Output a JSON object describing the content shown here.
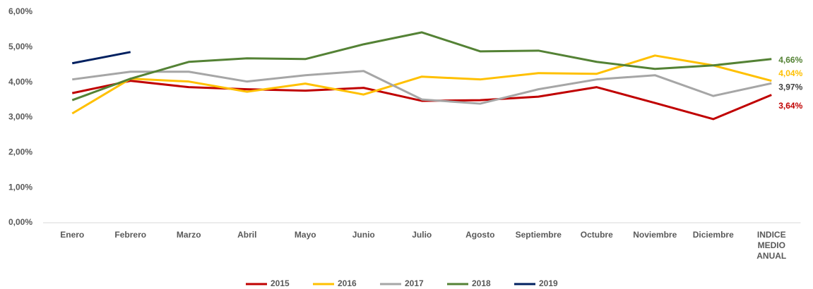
{
  "chart_data": {
    "type": "line",
    "categories": [
      "Enero",
      "Febrero",
      "Marzo",
      "Abril",
      "Mayo",
      "Junio",
      "Julio",
      "Agosto",
      "Septiembre",
      "Octubre",
      "Noviembre",
      "Diciembre",
      "INDICE MEDIO ANUAL"
    ],
    "series": [
      {
        "name": "2015",
        "color": "#c00000",
        "values": [
          3.69,
          4.04,
          3.86,
          3.8,
          3.76,
          3.84,
          3.47,
          3.49,
          3.59,
          3.86,
          3.41,
          2.95,
          3.64
        ],
        "value_labels": [
          null,
          null,
          null,
          null,
          null,
          null,
          null,
          null,
          null,
          null,
          null,
          null,
          "3,64%"
        ]
      },
      {
        "name": "2016",
        "color": "#ffc000",
        "values": [
          3.11,
          4.1,
          4.02,
          3.73,
          3.96,
          3.65,
          4.16,
          4.08,
          4.26,
          4.24,
          4.76,
          4.48,
          4.04
        ],
        "value_labels": [
          null,
          null,
          null,
          null,
          null,
          null,
          null,
          null,
          null,
          null,
          null,
          null,
          "4,04%"
        ]
      },
      {
        "name": "2017",
        "color": "#a6a6a6",
        "values": [
          4.08,
          4.3,
          4.3,
          4.02,
          4.2,
          4.32,
          3.51,
          3.39,
          3.8,
          4.08,
          4.2,
          3.61,
          3.97
        ],
        "value_labels": [
          null,
          null,
          null,
          null,
          null,
          null,
          null,
          null,
          null,
          null,
          null,
          null,
          "3,97%"
        ]
      },
      {
        "name": "2018",
        "color": "#548235",
        "values": [
          3.49,
          4.1,
          4.58,
          4.68,
          4.66,
          5.08,
          5.42,
          4.88,
          4.9,
          4.58,
          4.38,
          4.48,
          4.66
        ],
        "value_labels": [
          null,
          null,
          null,
          null,
          null,
          null,
          null,
          null,
          null,
          null,
          null,
          null,
          "4,66%"
        ]
      },
      {
        "name": "2019",
        "color": "#002060",
        "values": [
          4.54,
          4.86,
          null,
          null,
          null,
          null,
          null,
          null,
          null,
          null,
          null,
          null,
          null
        ]
      }
    ],
    "ylim": [
      0,
      6
    ],
    "yticks": [
      {
        "value": 0,
        "label": "0,00%"
      },
      {
        "value": 1,
        "label": "1,00%"
      },
      {
        "value": 2,
        "label": "2,00%"
      },
      {
        "value": 3,
        "label": "3,00%"
      },
      {
        "value": 4,
        "label": "4,00%"
      },
      {
        "value": 5,
        "label": "5,00%"
      },
      {
        "value": 6,
        "label": "6,00%"
      }
    ],
    "grid": false,
    "legend": "bottom"
  }
}
